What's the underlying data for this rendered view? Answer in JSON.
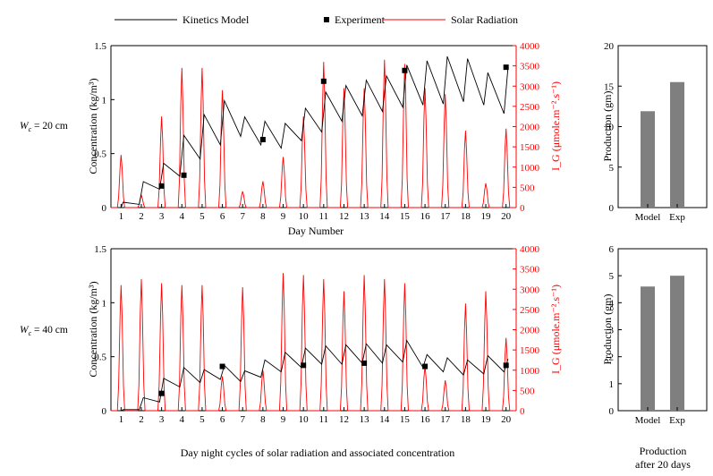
{
  "figure": {
    "caption_left": "Day night cycles of solar radiation and associated concentration",
    "caption_right_line1": "Production",
    "caption_right_line2": "after 20 days"
  },
  "legend": {
    "kinetics": "Kinetics Model",
    "experiment": "Experiment",
    "solar": "Solar Radiation"
  },
  "rows": [
    {
      "wc_label": "W",
      "wc_sub": "c",
      "wc_value": " = 20 cm"
    },
    {
      "wc_label": "W",
      "wc_sub": "c",
      "wc_value": " = 40 cm"
    }
  ],
  "axes": {
    "xlabel": "Day Number",
    "ylabel_left": "Concentration (kg/m³)",
    "ylabel_right": "I_G (μmole.m⁻².s⁻¹)",
    "ylabel_bar": "Production (gm)"
  },
  "colors": {
    "kinetics": "#000000",
    "solar": "#ff0000",
    "experiment": "#000000",
    "bar": "#7f7f7f"
  },
  "chart_data": [
    {
      "type": "line",
      "title": "W_c = 20 cm",
      "xlabel": "Day Number",
      "ylabel": "Concentration (kg/m3)",
      "y2label": "I_G (umole.m-2.s-1)",
      "xlim": [
        0.5,
        20.5
      ],
      "ylim": [
        0,
        1.5
      ],
      "y2lim": [
        0,
        4000
      ],
      "xticks": [
        1,
        2,
        3,
        4,
        5,
        6,
        7,
        8,
        9,
        10,
        11,
        12,
        13,
        14,
        15,
        16,
        17,
        18,
        19,
        20
      ],
      "yticks": [
        0,
        0.5,
        1,
        1.5
      ],
      "y2ticks": [
        0,
        500,
        1000,
        1500,
        2000,
        2500,
        3000,
        3500,
        4000
      ],
      "series": [
        {
          "name": "Kinetics Model",
          "kind": "daily_peaks_concentration",
          "start": [
            1.0,
            0.0
          ],
          "peaks": [
            [
              1.1,
              0.05
            ],
            [
              2.1,
              0.24
            ],
            [
              3.1,
              0.41
            ],
            [
              4.1,
              0.67
            ],
            [
              5.1,
              0.86
            ],
            [
              6.1,
              0.99
            ],
            [
              7.1,
              0.84
            ],
            [
              8.1,
              0.8
            ],
            [
              9.1,
              0.78
            ],
            [
              10.1,
              0.92
            ],
            [
              11.1,
              1.07
            ],
            [
              12.1,
              1.13
            ],
            [
              13.1,
              1.18
            ],
            [
              14.1,
              1.22
            ],
            [
              15.1,
              1.32
            ],
            [
              16.1,
              1.36
            ],
            [
              17.1,
              1.4
            ],
            [
              18.1,
              1.38
            ],
            [
              19.1,
              1.25
            ],
            [
              20.1,
              1.3
            ]
          ],
          "troughs": [
            [
              1.9,
              0.03
            ],
            [
              2.9,
              0.17
            ],
            [
              3.9,
              0.29
            ],
            [
              4.9,
              0.45
            ],
            [
              5.9,
              0.58
            ],
            [
              6.9,
              0.66
            ],
            [
              7.9,
              0.58
            ],
            [
              8.9,
              0.55
            ],
            [
              9.9,
              0.62
            ],
            [
              10.9,
              0.7
            ],
            [
              11.9,
              0.8
            ],
            [
              12.9,
              0.85
            ],
            [
              13.9,
              0.89
            ],
            [
              14.9,
              0.93
            ],
            [
              15.9,
              0.95
            ],
            [
              16.9,
              0.96
            ],
            [
              17.9,
              0.98
            ],
            [
              18.9,
              0.95
            ],
            [
              19.9,
              0.87
            ]
          ]
        },
        {
          "name": "Experiment",
          "kind": "scatter",
          "points": [
            [
              3,
              0.2
            ],
            [
              4.1,
              0.3
            ],
            [
              8,
              0.63
            ],
            [
              11,
              1.17
            ],
            [
              15,
              1.27
            ],
            [
              20,
              1.3
            ]
          ]
        },
        {
          "name": "Solar Radiation",
          "kind": "daily_pulses",
          "axis": "right",
          "peaks": [
            1300,
            300,
            2250,
            3450,
            3450,
            2900,
            400,
            650,
            1250,
            2250,
            3600,
            2950,
            2950,
            3650,
            3550,
            2950,
            2800,
            1900,
            600,
            1950
          ]
        }
      ]
    },
    {
      "type": "bar",
      "title": "Production after 20 days (W_c = 20 cm)",
      "categories": [
        "Model",
        "Exp"
      ],
      "values": [
        11.9,
        15.5
      ],
      "ylabel": "Production (gm)",
      "ylim": [
        0,
        20
      ],
      "yticks": [
        0,
        5,
        10,
        15,
        20
      ]
    },
    {
      "type": "line",
      "title": "W_c = 40 cm",
      "xlabel": "Day Number",
      "ylabel": "Concentration (kg/m3)",
      "y2label": "I_G (umole.m-2.s-1)",
      "xlim": [
        0.5,
        20.5
      ],
      "ylim": [
        0,
        1.5
      ],
      "y2lim": [
        0,
        4000
      ],
      "xticks": [
        1,
        2,
        3,
        4,
        5,
        6,
        7,
        8,
        9,
        10,
        11,
        12,
        13,
        14,
        15,
        16,
        17,
        18,
        19,
        20
      ],
      "yticks": [
        0,
        0.5,
        1,
        1.5
      ],
      "y2ticks": [
        0,
        500,
        1000,
        1500,
        2000,
        2500,
        3000,
        3500,
        4000
      ],
      "series": [
        {
          "name": "Kinetics Model",
          "kind": "daily_peaks_concentration",
          "start": [
            1.0,
            0.0
          ],
          "peaks": [
            [
              1.1,
              0.01
            ],
            [
              2.1,
              0.12
            ],
            [
              3.1,
              0.3
            ],
            [
              4.1,
              0.4
            ],
            [
              5.1,
              0.38
            ],
            [
              6.1,
              0.42
            ],
            [
              7.1,
              0.37
            ],
            [
              8.1,
              0.47
            ],
            [
              9.1,
              0.54
            ],
            [
              10.1,
              0.58
            ],
            [
              11.1,
              0.6
            ],
            [
              12.1,
              0.61
            ],
            [
              13.1,
              0.62
            ],
            [
              14.1,
              0.61
            ],
            [
              15.1,
              0.65
            ],
            [
              16.1,
              0.52
            ],
            [
              17.1,
              0.49
            ],
            [
              18.1,
              0.47
            ],
            [
              19.1,
              0.51
            ],
            [
              20.1,
              0.48
            ]
          ],
          "troughs": [
            [
              1.9,
              0.01
            ],
            [
              2.9,
              0.08
            ],
            [
              3.9,
              0.22
            ],
            [
              4.9,
              0.26
            ],
            [
              5.9,
              0.29
            ],
            [
              6.9,
              0.27
            ],
            [
              7.9,
              0.31
            ],
            [
              8.9,
              0.36
            ],
            [
              9.9,
              0.4
            ],
            [
              10.9,
              0.43
            ],
            [
              11.9,
              0.43
            ],
            [
              12.9,
              0.44
            ],
            [
              13.9,
              0.44
            ],
            [
              14.9,
              0.45
            ],
            [
              15.9,
              0.4
            ],
            [
              16.9,
              0.36
            ],
            [
              17.9,
              0.33
            ],
            [
              18.9,
              0.34
            ],
            [
              19.9,
              0.36
            ]
          ]
        },
        {
          "name": "Experiment",
          "kind": "scatter",
          "points": [
            [
              3,
              0.16
            ],
            [
              6,
              0.41
            ],
            [
              10,
              0.42
            ],
            [
              13,
              0.44
            ],
            [
              16,
              0.41
            ],
            [
              20,
              0.42
            ]
          ]
        },
        {
          "name": "Solar Radiation",
          "kind": "daily_pulses",
          "axis": "right",
          "peaks": [
            3100,
            3250,
            3150,
            3100,
            3100,
            850,
            3050,
            1000,
            3400,
            3350,
            3250,
            2950,
            3350,
            3250,
            3150,
            1100,
            750,
            2650,
            2950,
            1800
          ]
        }
      ]
    },
    {
      "type": "bar",
      "title": "Production after 20 days (W_c = 40 cm)",
      "categories": [
        "Model",
        "Exp"
      ],
      "values": [
        4.6,
        5.0
      ],
      "ylabel": "Production (gm)",
      "ylim": [
        0,
        6
      ],
      "yticks": [
        0,
        1,
        2,
        3,
        4,
        5,
        6
      ]
    }
  ]
}
